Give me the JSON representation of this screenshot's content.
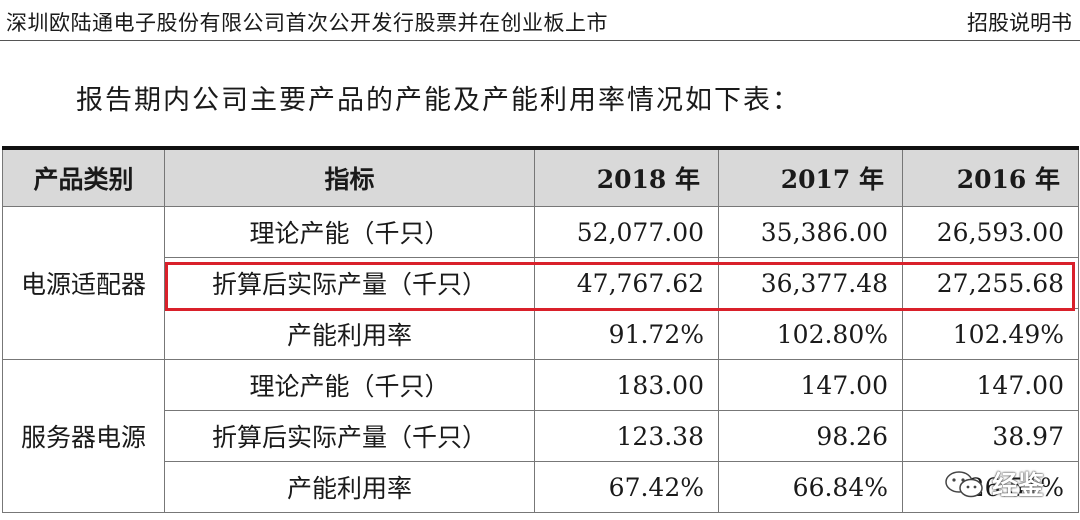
{
  "header": {
    "company_line": "深圳欧陆通电子股份有限公司首次公开发行股票并在创业板上市",
    "doc_type": "招股说明书"
  },
  "intro_text": "报告期内公司主要产品的产能及产能利用率情况如下表：",
  "table": {
    "columns": [
      "产品类别",
      "指标",
      "2018 年",
      "2017 年",
      "2016 年"
    ],
    "groups": [
      {
        "category": "电源适配器",
        "rows": [
          {
            "metric": "理论产能（千只）",
            "values": [
              "52,077.00",
              "35,386.00",
              "26,593.00"
            ]
          },
          {
            "metric": "折算后实际产量（千只）",
            "values": [
              "47,767.62",
              "36,377.48",
              "27,255.68"
            ],
            "highlighted": true
          },
          {
            "metric": "产能利用率",
            "values": [
              "91.72%",
              "102.80%",
              "102.49%"
            ]
          }
        ]
      },
      {
        "category": "服务器电源",
        "rows": [
          {
            "metric": "理论产能（千只）",
            "values": [
              "183.00",
              "147.00",
              "147.00"
            ]
          },
          {
            "metric": "折算后实际产量（千只）",
            "values": [
              "123.38",
              "98.26",
              "38.97"
            ]
          },
          {
            "metric": "产能利用率",
            "values": [
              "67.42%",
              "66.84%",
              "26.51%"
            ]
          }
        ]
      }
    ]
  },
  "highlight_color": "#d9202a",
  "watermark": {
    "text": "经鉴",
    "icon": "wechat-icon"
  }
}
